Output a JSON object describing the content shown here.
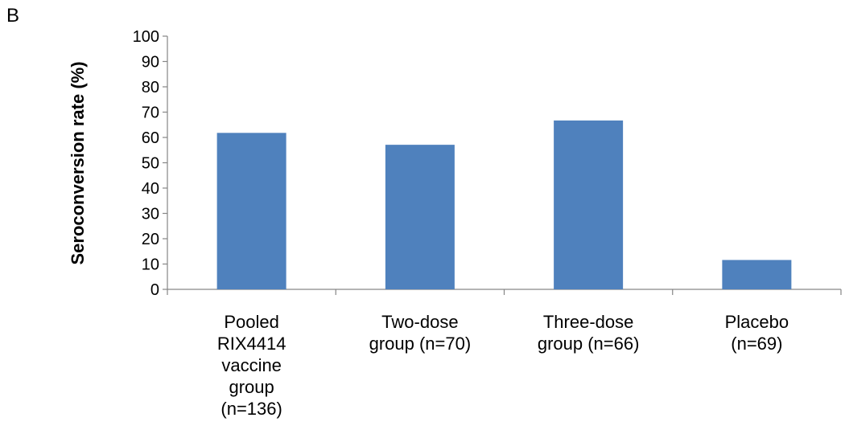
{
  "panel_label": "B",
  "chart_data": {
    "type": "bar",
    "title": "",
    "xlabel": "",
    "ylabel": "Seroconversion rate (%)",
    "ylim": [
      0,
      100
    ],
    "yticks": [
      0,
      10,
      20,
      30,
      40,
      50,
      60,
      70,
      80,
      90,
      100
    ],
    "categories": [
      [
        "Pooled",
        "RIX4414",
        "vaccine",
        "group",
        "(n=136)"
      ],
      [
        "Two-dose",
        "group (n=70)"
      ],
      [
        "Three-dose",
        "group (n=66)"
      ],
      [
        "Placebo",
        "(n=69)"
      ]
    ],
    "values": [
      61.8,
      57.1,
      66.7,
      11.6
    ],
    "bar_color": "#4F81BD",
    "grid": false,
    "legend": "none"
  }
}
